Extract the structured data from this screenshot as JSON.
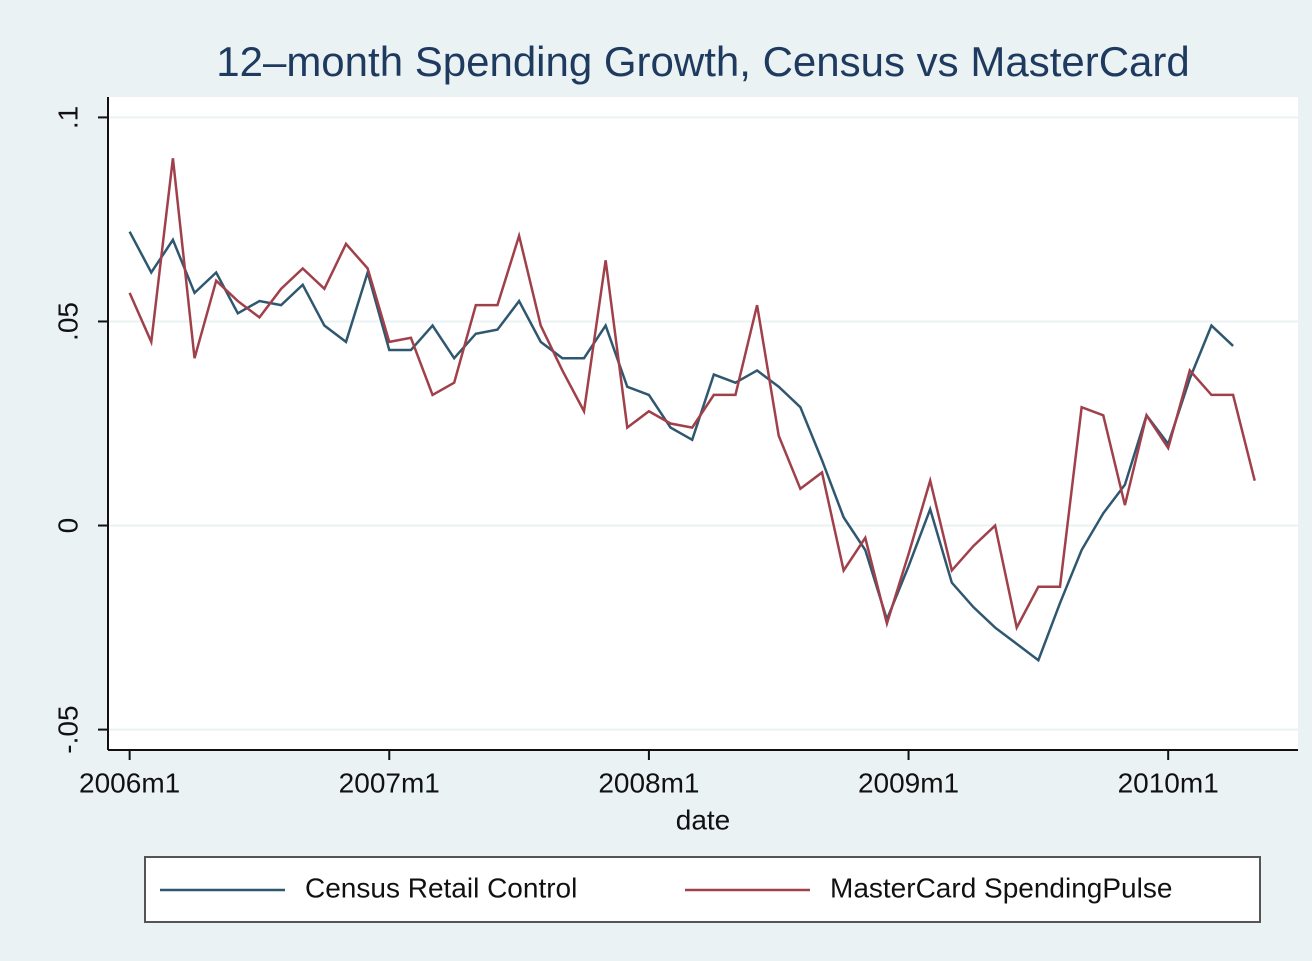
{
  "chart_data": {
    "type": "line",
    "title": "12–month Spending Growth, Census vs MasterCard",
    "xlabel": "date",
    "x": [
      552,
      553,
      554,
      555,
      556,
      557,
      558,
      559,
      560,
      561,
      562,
      563,
      564,
      565,
      566,
      567,
      568,
      569,
      570,
      571,
      572,
      573,
      574,
      575,
      576,
      577,
      578,
      579,
      580,
      581,
      582,
      583,
      584,
      585,
      586,
      587,
      588,
      589,
      590,
      591,
      592,
      593,
      594,
      595,
      596,
      597,
      598,
      599,
      600,
      601,
      602,
      603,
      604
    ],
    "series": [
      {
        "name": "Census Retail Control",
        "color": "#2f5870",
        "values": [
          0.072,
          0.062,
          0.07,
          0.057,
          0.062,
          0.052,
          0.055,
          0.054,
          0.059,
          0.049,
          0.045,
          0.062,
          0.043,
          0.043,
          0.049,
          0.041,
          0.047,
          0.048,
          0.055,
          0.045,
          0.041,
          0.041,
          0.049,
          0.034,
          0.032,
          0.024,
          0.021,
          0.037,
          0.035,
          0.038,
          0.034,
          0.029,
          0.016,
          0.002,
          -0.006,
          -0.023,
          -0.01,
          0.004,
          -0.014,
          -0.02,
          -0.025,
          -0.029,
          -0.033,
          -0.019,
          -0.006,
          0.003,
          0.01,
          0.027,
          0.02,
          0.036,
          0.049,
          0.044,
          null
        ]
      },
      {
        "name": "MasterCard SpendingPulse",
        "color": "#a0404a",
        "values": [
          0.057,
          0.045,
          0.09,
          0.041,
          0.06,
          0.055,
          0.051,
          0.058,
          0.063,
          0.058,
          0.069,
          0.063,
          0.045,
          0.046,
          0.032,
          0.035,
          0.054,
          0.054,
          0.071,
          0.049,
          0.038,
          0.028,
          0.065,
          0.024,
          0.028,
          0.025,
          0.024,
          0.032,
          0.032,
          0.054,
          0.022,
          0.009,
          0.013,
          -0.011,
          -0.003,
          -0.024,
          -0.007,
          0.011,
          -0.011,
          -0.005,
          0,
          -0.025,
          -0.015,
          -0.015,
          0.029,
          0.027,
          0.005,
          0.027,
          0.019,
          0.038,
          0.032,
          0.032,
          0.011
        ]
      }
    ],
    "xlim": [
      551,
      606
    ],
    "xticks": [
      {
        "value": 552,
        "label": "2006m1"
      },
      {
        "value": 564,
        "label": "2007m1"
      },
      {
        "value": 576,
        "label": "2008m1"
      },
      {
        "value": 588,
        "label": "2009m1"
      },
      {
        "value": 600,
        "label": "2010m1"
      }
    ],
    "ylim": [
      -0.055,
      0.105
    ],
    "yticks": [
      {
        "value": -0.05,
        "label": "-.05"
      },
      0,
      {
        "value": 0.05,
        "label": ".05"
      },
      {
        "value": 0.1,
        "label": ".1"
      }
    ],
    "grid": true,
    "legend": "bottom"
  }
}
